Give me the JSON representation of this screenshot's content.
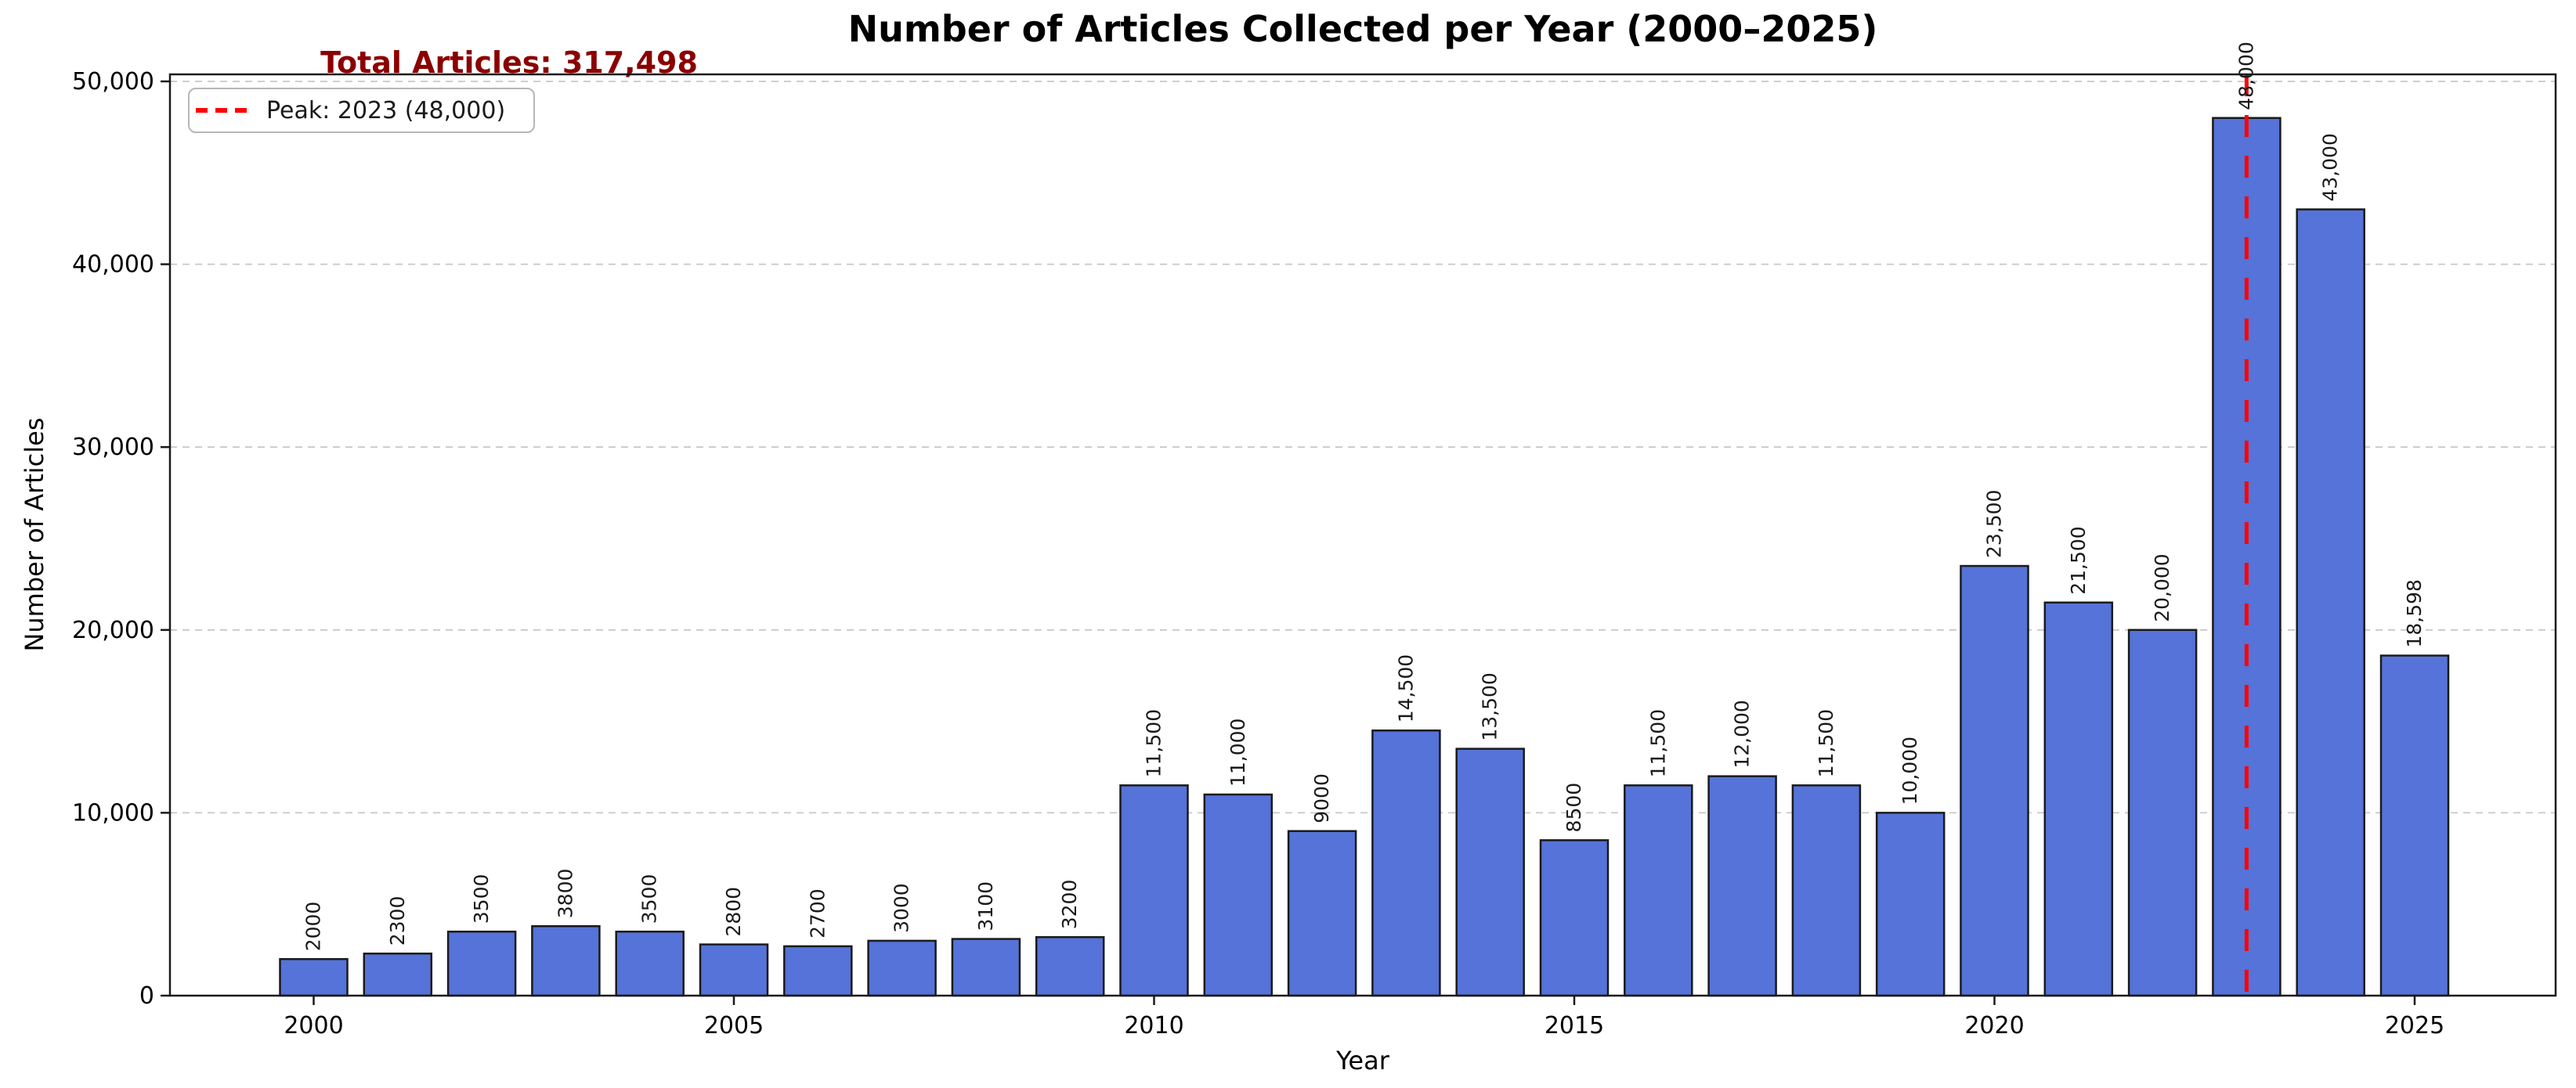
{
  "title": "Number of Articles Collected per Year (2000–2025)",
  "annotations": {
    "total_label": "Total Articles: 317,498",
    "total_color": "#8b0000"
  },
  "legend": {
    "label": "Peak: 2023 (48,000)",
    "line_color": "#ff0000",
    "position": "upper left"
  },
  "chart_data": {
    "type": "bar",
    "title": "Number of Articles Collected per Year (2000–2025)",
    "xlabel": "Year",
    "ylabel": "Number of Articles",
    "categories": [
      2000,
      2001,
      2002,
      2003,
      2004,
      2005,
      2006,
      2007,
      2008,
      2009,
      2010,
      2011,
      2012,
      2013,
      2014,
      2015,
      2016,
      2017,
      2018,
      2019,
      2020,
      2021,
      2022,
      2023,
      2024,
      2025
    ],
    "values": [
      2000,
      2300,
      3500,
      3800,
      3500,
      2800,
      2700,
      3000,
      3100,
      3200,
      11500,
      11000,
      9000,
      14500,
      13500,
      8500,
      11500,
      12000,
      11500,
      10000,
      23500,
      21500,
      20000,
      48000,
      43000,
      18598
    ],
    "bar_labels": [
      "2000",
      "2300",
      "3500",
      "3800",
      "3500",
      "2800",
      "2700",
      "3000",
      "3100",
      "3200",
      "11,500",
      "11,000",
      "9000",
      "14,500",
      "13,500",
      "8500",
      "11,500",
      "12,000",
      "11,500",
      "10,000",
      "23,500",
      "21,500",
      "20,000",
      "48,000",
      "43,000",
      "18,598"
    ],
    "x_ticks": [
      2000,
      2005,
      2010,
      2015,
      2020,
      2025
    ],
    "y_ticks": [
      0,
      10000,
      20000,
      30000,
      40000,
      50000
    ],
    "y_tick_labels": [
      "0",
      "10,000",
      "20,000",
      "30,000",
      "40,000",
      "50,000"
    ],
    "ylim": [
      0,
      50385
    ],
    "total": 317498,
    "peak": {
      "year": 2023,
      "value": 48000
    },
    "grid": "horizontal dashed",
    "legend_position": "upper left",
    "bar_color": "#5573d8",
    "bar_edge_color": "#1a1a1a",
    "peak_line_color": "#ff0000",
    "grid_color": "#c8c8c8"
  }
}
